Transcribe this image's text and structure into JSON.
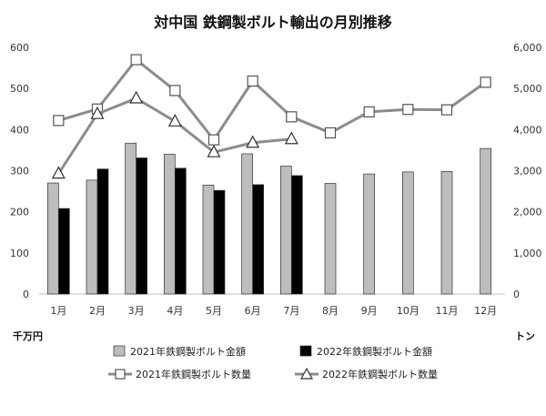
{
  "chart_data": {
    "type": "bar",
    "title": "対中国 鉄鋼製ボルト輸出の月別推移",
    "categories": [
      "1月",
      "2月",
      "3月",
      "4月",
      "5月",
      "6月",
      "7月",
      "8月",
      "9月",
      "10月",
      "11月",
      "12月"
    ],
    "left_axis": {
      "unit": "千万円",
      "ylim": [
        0,
        600
      ],
      "ticks": [
        "0",
        "100",
        "200",
        "300",
        "400",
        "500",
        "600"
      ]
    },
    "right_axis": {
      "unit": "トン",
      "ylim": [
        0,
        6000
      ],
      "ticks": [
        "0",
        "1,000",
        "2,000",
        "3,000",
        "4,000",
        "5,000",
        "6,000"
      ]
    },
    "grid": false,
    "legend_position": "bottom",
    "series": [
      {
        "name": "2021年鉄鋼製ボルト金額",
        "type": "bar",
        "axis": "left",
        "color": "#bdbdbd",
        "values": [
          270,
          277,
          367,
          340,
          265,
          341,
          311,
          269,
          292,
          297,
          298,
          354
        ]
      },
      {
        "name": "2022年鉄鋼製ボルト金額",
        "type": "bar",
        "axis": "left",
        "color": "#000000",
        "values": [
          208,
          304,
          331,
          306,
          252,
          266,
          288,
          null,
          null,
          null,
          null,
          null
        ]
      },
      {
        "name": "2021年鉄鋼製ボルト数量",
        "type": "line",
        "marker": "square",
        "axis": "right",
        "color": "#8c8c8c",
        "values": [
          4220,
          4500,
          5700,
          4950,
          3750,
          5180,
          4310,
          3920,
          4430,
          4490,
          4480,
          5150
        ]
      },
      {
        "name": "2022年鉄鋼製ボルト数量",
        "type": "line",
        "marker": "triangle",
        "axis": "right",
        "color": "#8c8c8c",
        "values": [
          2930,
          4380,
          4760,
          4200,
          3450,
          3680,
          3770,
          null,
          null,
          null,
          null,
          null
        ]
      }
    ]
  }
}
